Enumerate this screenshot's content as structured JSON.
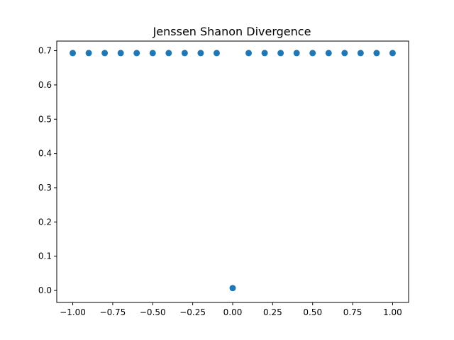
{
  "chart_data": {
    "type": "scatter",
    "title": "Jenssen Shanon Divergence",
    "xlabel": "",
    "ylabel": "",
    "xlim": [
      -1.1,
      1.1
    ],
    "ylim": [
      -0.035,
      0.728
    ],
    "xticks": [
      -1.0,
      -0.75,
      -0.5,
      -0.25,
      0.0,
      0.25,
      0.5,
      0.75,
      1.0
    ],
    "xtick_labels": [
      "−1.00",
      "−0.75",
      "−0.50",
      "−0.25",
      "0.00",
      "0.25",
      "0.50",
      "0.75",
      "1.00"
    ],
    "yticks": [
      0.0,
      0.1,
      0.2,
      0.3,
      0.4,
      0.5,
      0.6,
      0.7
    ],
    "ytick_labels": [
      "0.0",
      "0.1",
      "0.2",
      "0.3",
      "0.4",
      "0.5",
      "0.6",
      "0.7"
    ],
    "grid": false,
    "color": "#1f77b4",
    "x": [
      -1.0,
      -0.9,
      -0.8,
      -0.7,
      -0.6,
      -0.5,
      -0.4,
      -0.3,
      -0.2,
      -0.1,
      0.0,
      0.1,
      0.2,
      0.3,
      0.4,
      0.5,
      0.6,
      0.7,
      0.8,
      0.9,
      1.0
    ],
    "y": [
      0.693,
      0.693,
      0.693,
      0.693,
      0.693,
      0.693,
      0.693,
      0.693,
      0.693,
      0.693,
      0.007,
      0.693,
      0.693,
      0.693,
      0.693,
      0.693,
      0.693,
      0.693,
      0.693,
      0.693,
      0.693
    ]
  }
}
